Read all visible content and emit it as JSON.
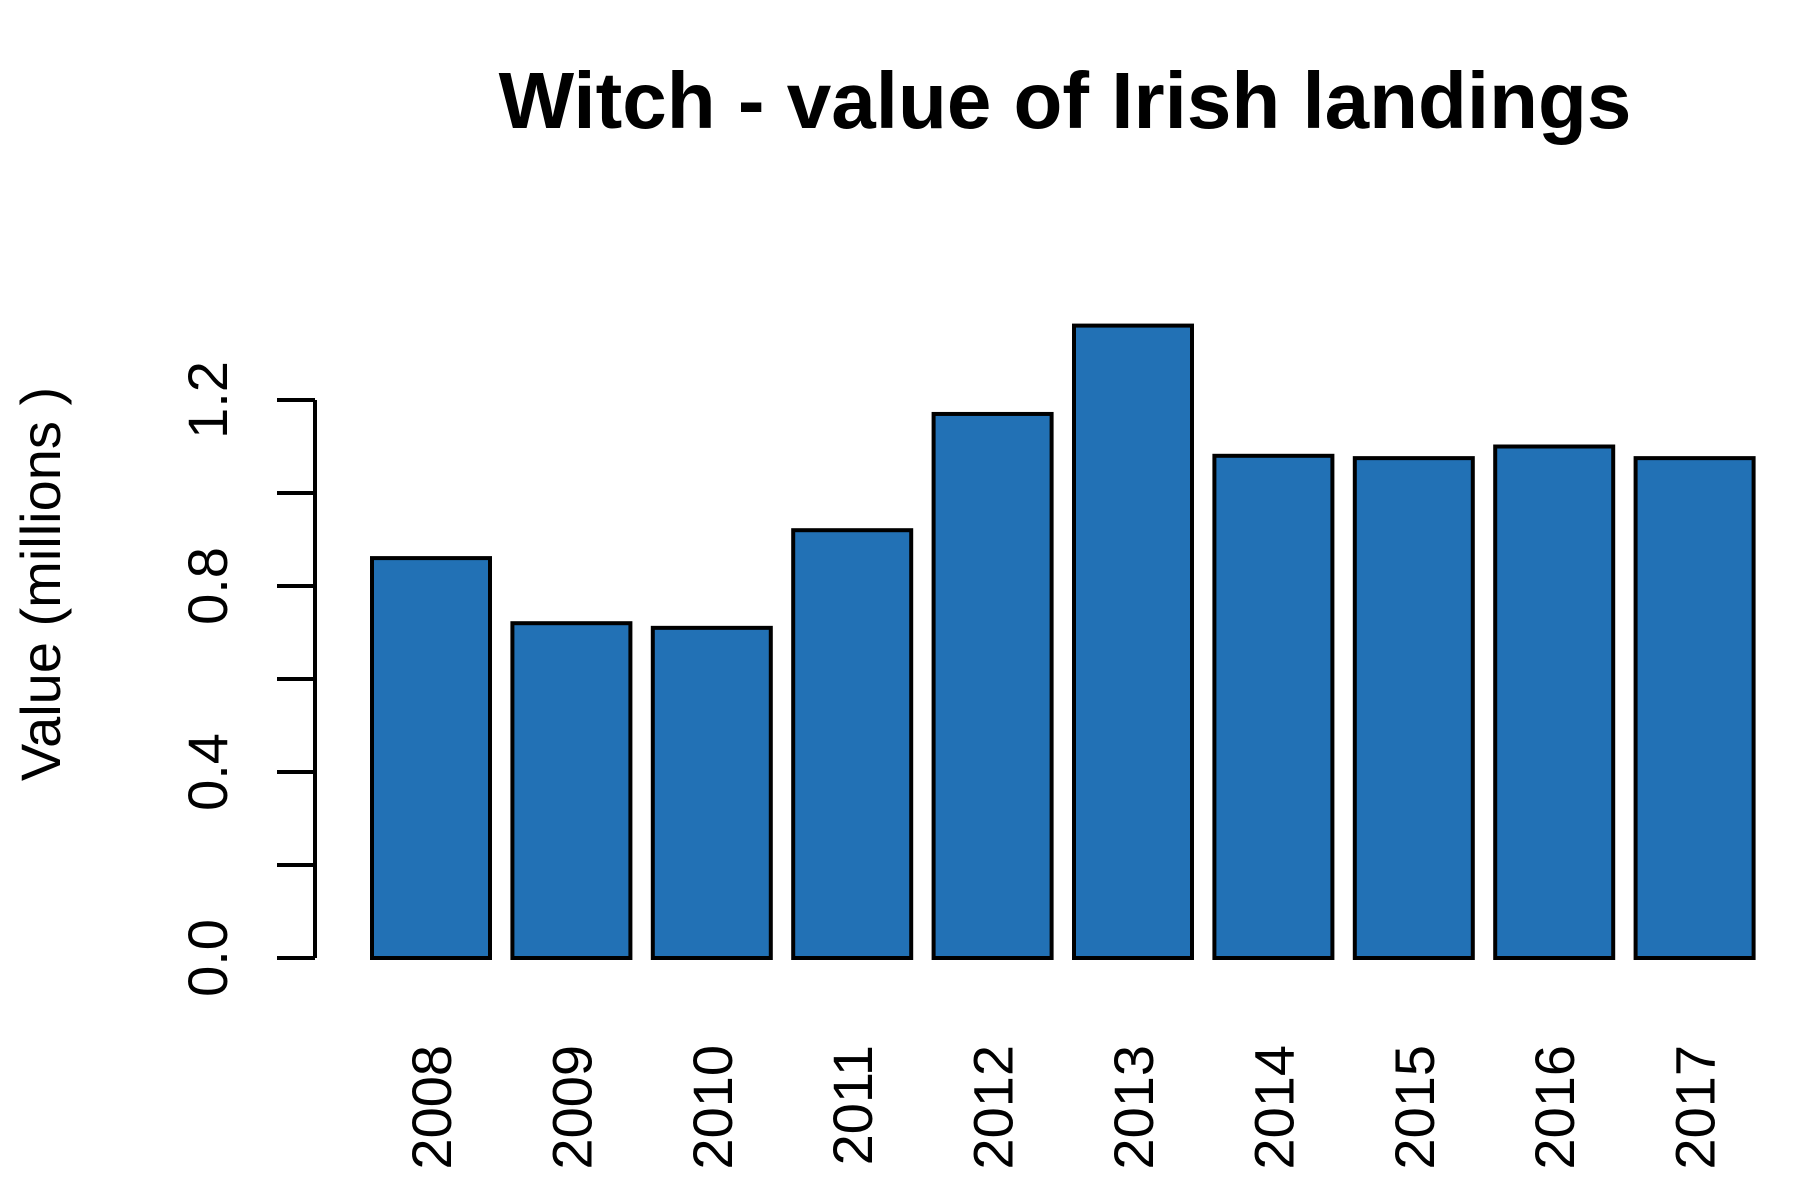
{
  "chart_data": {
    "type": "bar",
    "title": "Witch - value of Irish landings",
    "xlabel": "",
    "ylabel": "Value (millions )",
    "categories": [
      "2008",
      "2009",
      "2010",
      "2011",
      "2012",
      "2013",
      "2014",
      "2015",
      "2016",
      "2017"
    ],
    "values": [
      0.86,
      0.72,
      0.71,
      0.92,
      1.17,
      1.36,
      1.08,
      1.075,
      1.1,
      1.075
    ],
    "ylim": [
      0,
      1.4
    ],
    "yticks": [
      0.0,
      0.2,
      0.4,
      0.6,
      0.8,
      1.0,
      1.2
    ],
    "ytick_labels": [
      "0.0",
      "",
      "0.4",
      "",
      "0.8",
      "",
      "1.2"
    ],
    "bar_color": "#2271b5",
    "grid": false,
    "legend": "none"
  }
}
